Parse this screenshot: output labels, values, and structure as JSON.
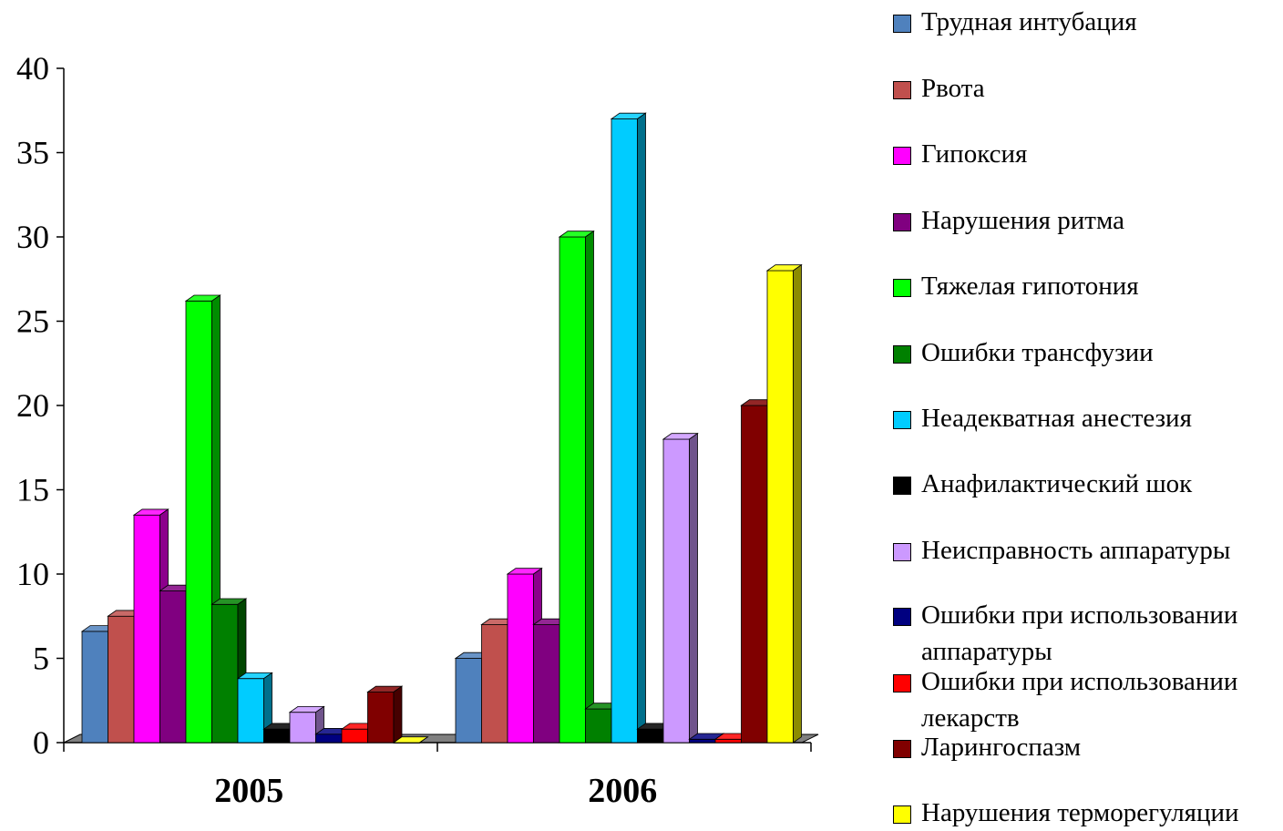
{
  "chart_data": {
    "type": "bar",
    "categories": [
      "2005",
      "2006"
    ],
    "ylim": [
      0,
      40
    ],
    "yticks": [
      0,
      5,
      10,
      15,
      20,
      25,
      30,
      35,
      40
    ],
    "title": "",
    "xlabel": "",
    "ylabel": "",
    "legend": "right",
    "grid": false,
    "series": [
      {
        "name": "Трудная интубация",
        "color": "#4F81BD",
        "values": [
          6.6,
          5
        ]
      },
      {
        "name": "Рвота",
        "color": "#C0504D",
        "values": [
          7.5,
          7
        ]
      },
      {
        "name": "Гипоксия",
        "color": "#FF00FF",
        "values": [
          13.5,
          10
        ]
      },
      {
        "name": "Нарушения ритма",
        "color": "#800080",
        "values": [
          9,
          7
        ]
      },
      {
        "name": "Тяжелая гипотония",
        "color": "#00FF00",
        "values": [
          26.2,
          30
        ]
      },
      {
        "name": "Ошибки трансфузии",
        "color": "#008000",
        "values": [
          8.2,
          2
        ]
      },
      {
        "name": "Неадекватная анестезия",
        "color": "#00CCFF",
        "values": [
          3.8,
          37
        ]
      },
      {
        "name": "Анафилактический шок",
        "color": "#000000",
        "values": [
          0.8,
          0.8
        ]
      },
      {
        "name": "Неисправность аппаратуры",
        "color": "#CC99FF",
        "values": [
          1.8,
          18
        ]
      },
      {
        "name": "Ошибки при использовании аппаратуры",
        "color": "#000080",
        "values": [
          0.5,
          0.2
        ]
      },
      {
        "name": "Ошибки при использовании лекарств",
        "color": "#FF0000",
        "values": [
          0.8,
          0.2
        ]
      },
      {
        "name": "Ларингоспазм",
        "color": "#800000",
        "values": [
          3,
          20
        ]
      },
      {
        "name": "Нарушения терморегуляции",
        "color": "#FFFF00",
        "values": [
          0,
          28
        ]
      }
    ]
  }
}
